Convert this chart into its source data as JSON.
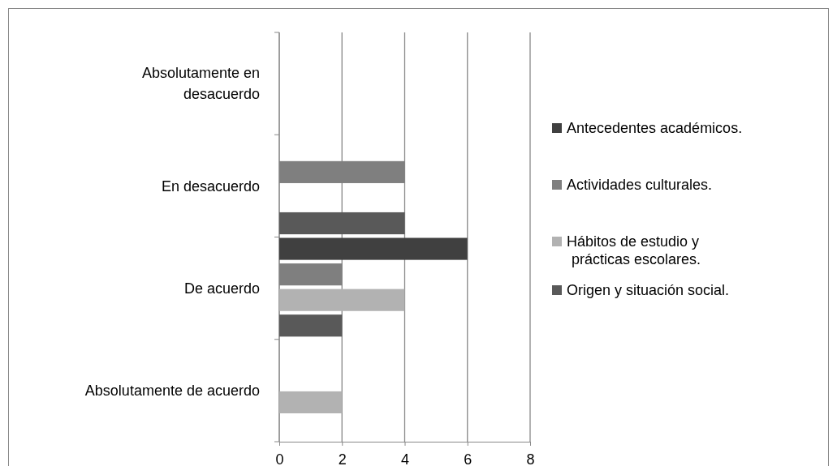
{
  "chart_data": {
    "type": "bar",
    "orientation": "horizontal",
    "categories": [
      "Absolutamente en desacuerdo",
      "En desacuerdo",
      "De acuerdo",
      "Absolutamente de acuerdo"
    ],
    "series": [
      {
        "name": "Antecedentes académicos.",
        "color": "#404040",
        "values": [
          0,
          0,
          6,
          0
        ]
      },
      {
        "name": "Actividades culturales.",
        "color": "#7f7f7f",
        "values": [
          0,
          4,
          2,
          0
        ]
      },
      {
        "name": " Hábitos de estudio y prácticas escolares.",
        "color": "#b2b2b2",
        "values": [
          0,
          0,
          4,
          2
        ]
      },
      {
        "name": "Origen y situación social.",
        "color": "#595959",
        "values": [
          0,
          4,
          2,
          0
        ]
      }
    ],
    "xlim": [
      0,
      8
    ],
    "xticks": [
      0,
      2,
      4,
      6,
      8
    ],
    "grid": "x",
    "legend": "right"
  }
}
